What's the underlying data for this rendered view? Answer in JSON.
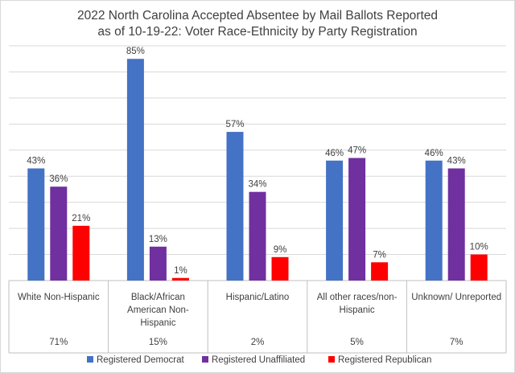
{
  "chart_data": {
    "type": "bar",
    "title_lines": [
      "2022 North Carolina Accepted Absentee by Mail Ballots Reported",
      "as of 10-19-22: Voter Race-Ethnicity by Party Registration"
    ],
    "categories": [
      [
        "White Non-Hispanic"
      ],
      [
        "Black/African",
        "American Non-",
        "Hispanic"
      ],
      [
        "Hispanic/Latino"
      ],
      [
        "All other races/non-",
        "Hispanic"
      ],
      [
        "Unknown/ Unreported"
      ]
    ],
    "category_shares": [
      "71%",
      "15%",
      "2%",
      "5%",
      "7%"
    ],
    "series": [
      {
        "name": "Registered Democrat",
        "color": "#4472C4",
        "values": [
          43,
          85,
          57,
          46,
          46
        ],
        "labels": [
          "43%",
          "85%",
          "57%",
          "46%",
          "46%"
        ]
      },
      {
        "name": "Registered Unaffiliated",
        "color": "#7030A0",
        "values": [
          36,
          13,
          34,
          47,
          43
        ],
        "labels": [
          "36%",
          "13%",
          "34%",
          "47%",
          "43%"
        ]
      },
      {
        "name": "Registered Republican",
        "color": "#FF0000",
        "values": [
          21,
          1,
          9,
          7,
          10
        ],
        "labels": [
          "21%",
          "1%",
          "9%",
          "7%",
          "10%"
        ]
      }
    ],
    "ylim": [
      0,
      90
    ],
    "grid": true,
    "legend": "bottom"
  }
}
